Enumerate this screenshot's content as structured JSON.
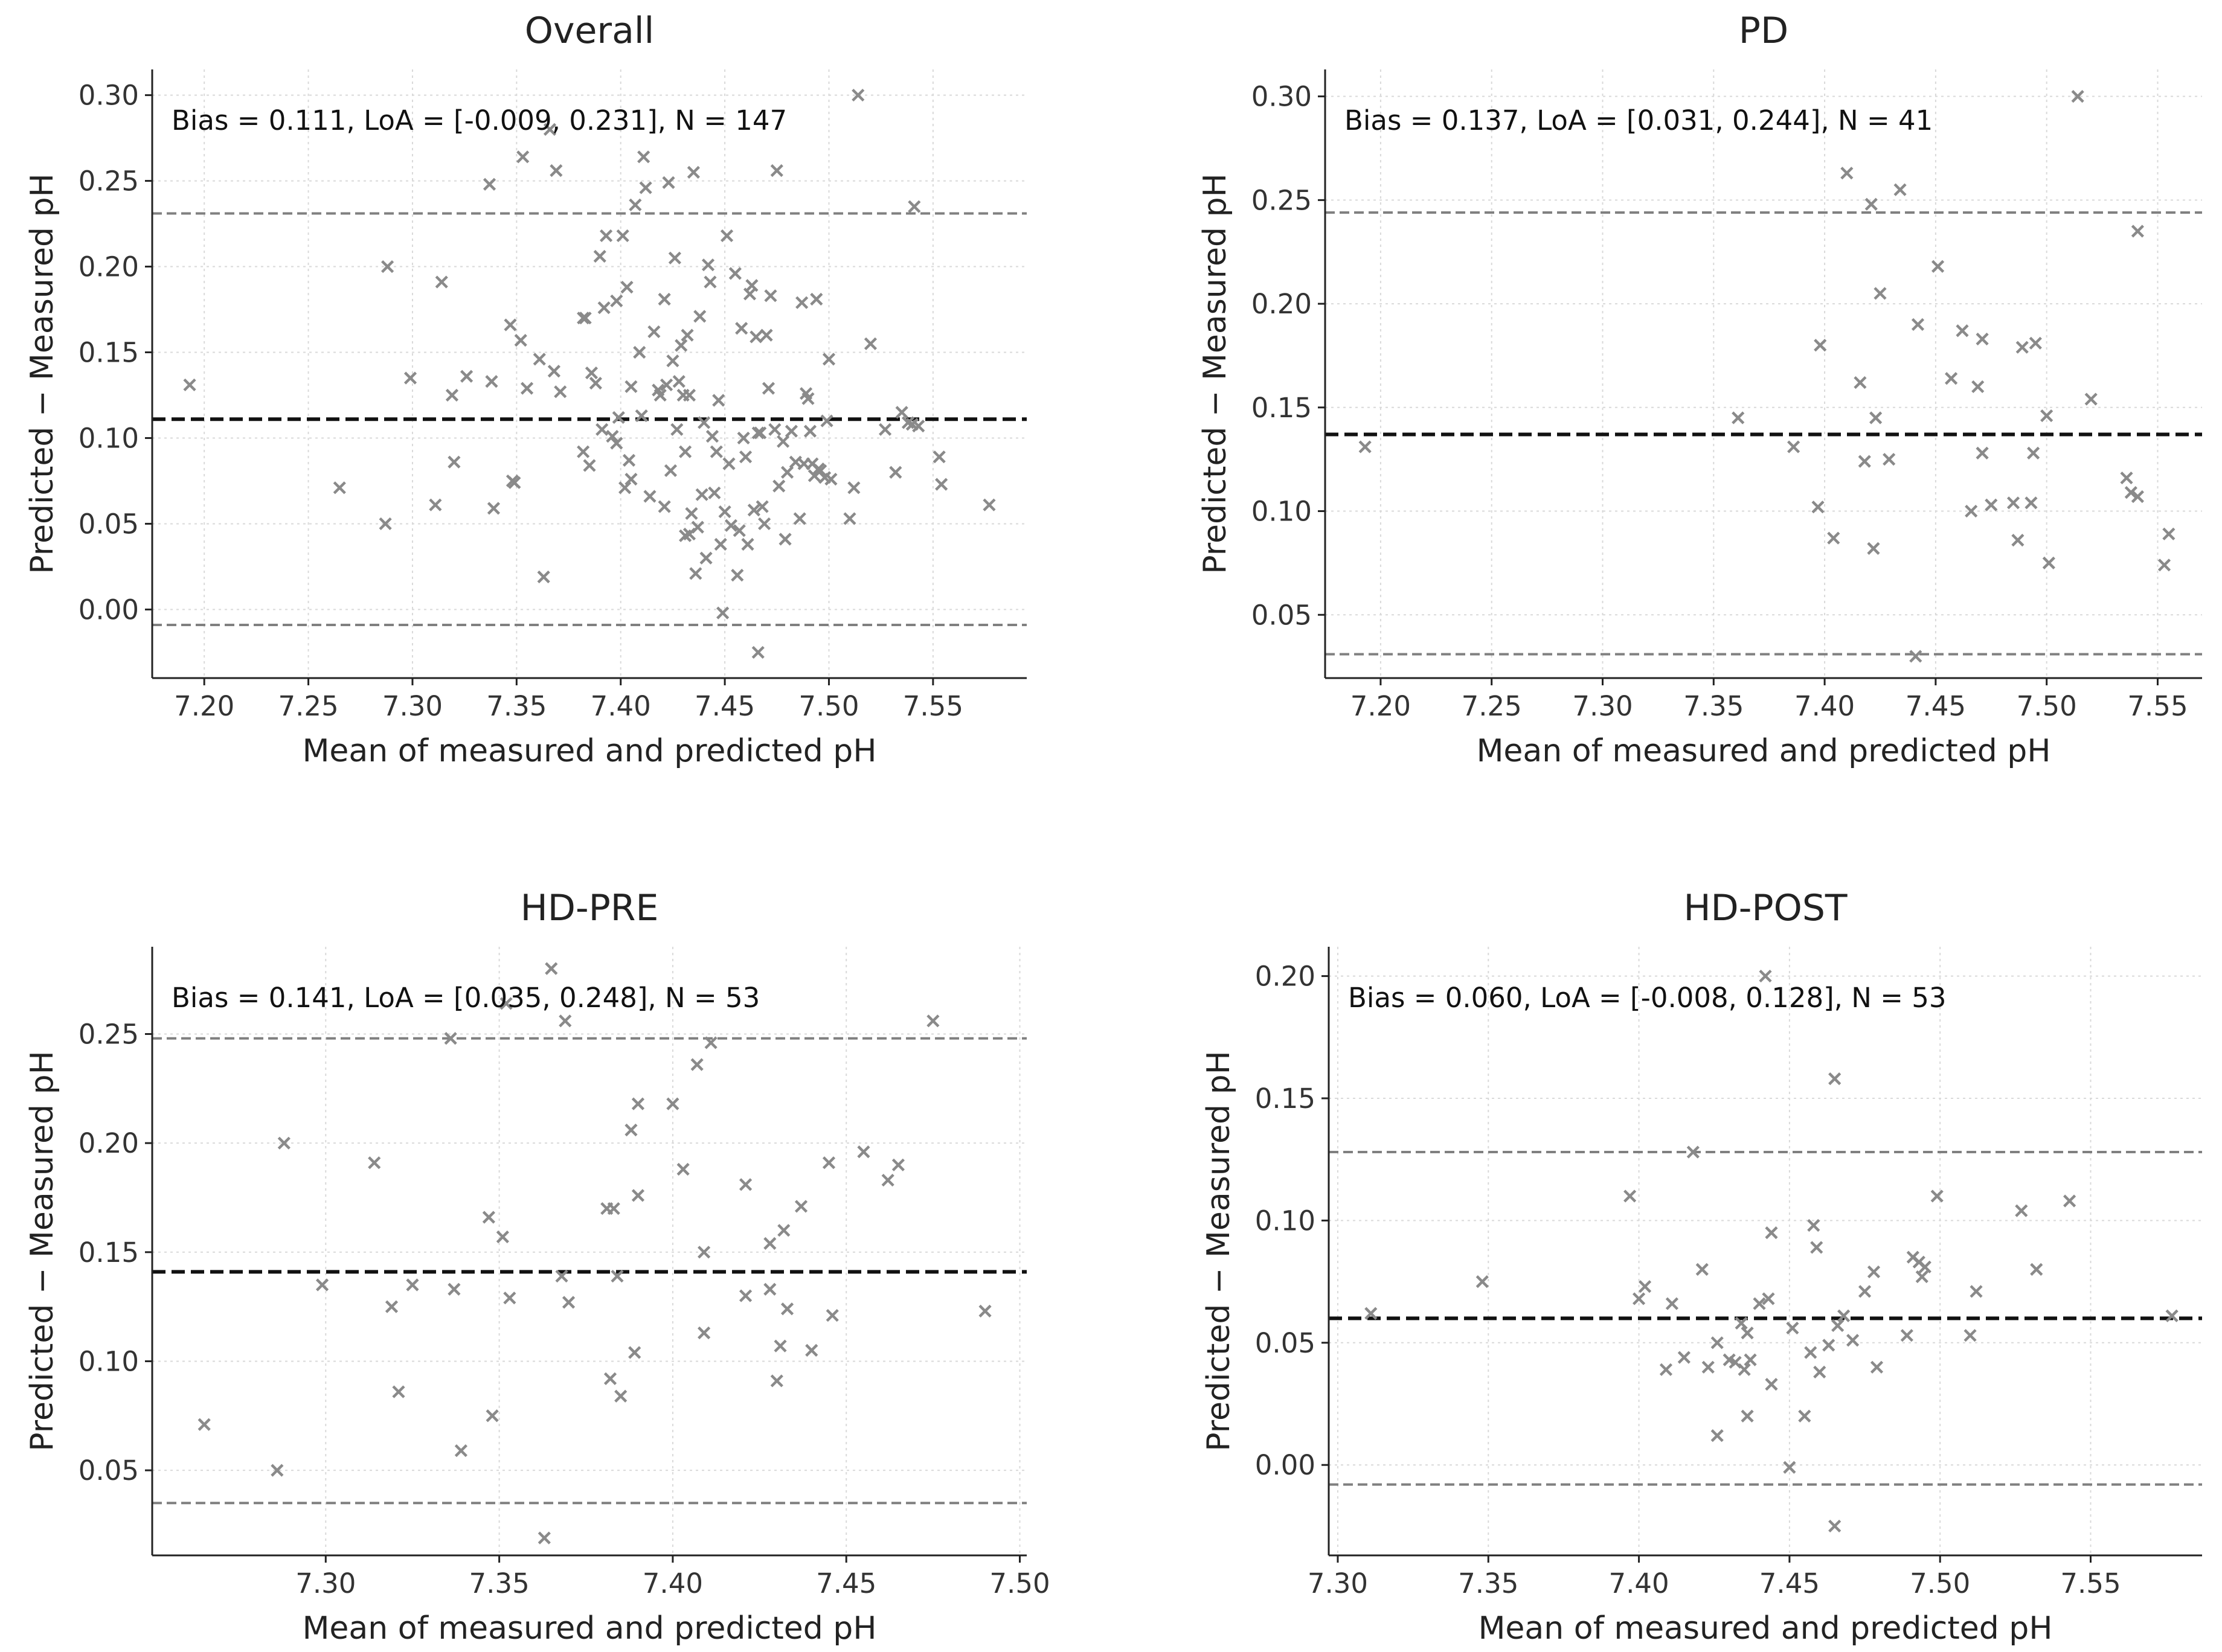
{
  "chart_data": [
    {
      "type": "scatter",
      "title": "Overall",
      "xlabel": "Mean of measured and predicted pH",
      "ylabel": "Predicted − Measured pH",
      "xlim": [
        7.175,
        7.595
      ],
      "ylim": [
        -0.04,
        0.315
      ],
      "xticks": [
        "7.20",
        "7.25",
        "7.30",
        "7.35",
        "7.40",
        "7.45",
        "7.50",
        "7.55"
      ],
      "yticks": [
        "0.00",
        "0.05",
        "0.10",
        "0.15",
        "0.20",
        "0.25",
        "0.30"
      ],
      "bias": 0.111,
      "loa_low": -0.009,
      "loa_high": 0.231,
      "annotation": "Bias = 0.111,   LoA = [-0.009,  0.231],   N = 147",
      "grid": true,
      "marker": "x",
      "points": [
        [
          7.193,
          0.131
        ],
        [
          7.265,
          0.071
        ],
        [
          7.287,
          0.05
        ],
        [
          7.288,
          0.2
        ],
        [
          7.299,
          0.135
        ],
        [
          7.311,
          0.061
        ],
        [
          7.314,
          0.191
        ],
        [
          7.319,
          0.125
        ],
        [
          7.32,
          0.086
        ],
        [
          7.326,
          0.136
        ],
        [
          7.337,
          0.248
        ],
        [
          7.338,
          0.133
        ],
        [
          7.339,
          0.059
        ],
        [
          7.347,
          0.166
        ],
        [
          7.348,
          0.075
        ],
        [
          7.349,
          0.074
        ],
        [
          7.352,
          0.157
        ],
        [
          7.353,
          0.264
        ],
        [
          7.355,
          0.129
        ],
        [
          7.361,
          0.146
        ],
        [
          7.363,
          0.019
        ],
        [
          7.366,
          0.28
        ],
        [
          7.368,
          0.139
        ],
        [
          7.369,
          0.256
        ],
        [
          7.371,
          0.127
        ],
        [
          7.382,
          0.17
        ],
        [
          7.383,
          0.17
        ],
        [
          7.382,
          0.092
        ],
        [
          7.385,
          0.084
        ],
        [
          7.386,
          0.138
        ],
        [
          7.388,
          0.132
        ],
        [
          7.39,
          0.206
        ],
        [
          7.391,
          0.105
        ],
        [
          7.392,
          0.176
        ],
        [
          7.393,
          0.218
        ],
        [
          7.396,
          0.101
        ],
        [
          7.398,
          0.18
        ],
        [
          7.399,
          0.112
        ],
        [
          7.401,
          0.218
        ],
        [
          7.402,
          0.071
        ],
        [
          7.403,
          0.188
        ],
        [
          7.404,
          0.087
        ],
        [
          7.405,
          0.076
        ],
        [
          7.407,
          0.236
        ],
        [
          7.409,
          0.15
        ],
        [
          7.41,
          0.113
        ],
        [
          7.411,
          0.264
        ],
        [
          7.412,
          0.246
        ],
        [
          7.414,
          0.066
        ],
        [
          7.416,
          0.162
        ],
        [
          7.418,
          0.128
        ],
        [
          7.419,
          0.125
        ],
        [
          7.421,
          0.181
        ],
        [
          7.422,
          0.131
        ],
        [
          7.423,
          0.249
        ],
        [
          7.424,
          0.081
        ],
        [
          7.425,
          0.145
        ],
        [
          7.426,
          0.205
        ],
        [
          7.427,
          0.105
        ],
        [
          7.428,
          0.133
        ],
        [
          7.429,
          0.154
        ],
        [
          7.43,
          0.125
        ],
        [
          7.431,
          0.092
        ],
        [
          7.432,
          0.16
        ],
        [
          7.433,
          0.125
        ],
        [
          7.434,
          0.056
        ],
        [
          7.435,
          0.255
        ],
        [
          7.436,
          0.021
        ],
        [
          7.437,
          0.048
        ],
        [
          7.438,
          0.171
        ],
        [
          7.439,
          0.067
        ],
        [
          7.44,
          0.109
        ],
        [
          7.441,
          0.03
        ],
        [
          7.442,
          0.201
        ],
        [
          7.443,
          0.191
        ],
        [
          7.444,
          0.101
        ],
        [
          7.445,
          0.068
        ],
        [
          7.446,
          0.092
        ],
        [
          7.447,
          0.122
        ],
        [
          7.448,
          0.038
        ],
        [
          7.449,
          -0.002
        ],
        [
          7.45,
          0.057
        ],
        [
          7.451,
          0.218
        ],
        [
          7.452,
          0.085
        ],
        [
          7.453,
          0.049
        ],
        [
          7.455,
          0.196
        ],
        [
          7.456,
          0.02
        ],
        [
          7.457,
          0.046
        ],
        [
          7.458,
          0.164
        ],
        [
          7.459,
          0.1
        ],
        [
          7.46,
          0.089
        ],
        [
          7.461,
          0.038
        ],
        [
          7.462,
          0.184
        ],
        [
          7.463,
          0.189
        ],
        [
          7.464,
          0.058
        ],
        [
          7.465,
          0.159
        ],
        [
          7.466,
          -0.025
        ],
        [
          7.467,
          0.103
        ],
        [
          7.468,
          0.06
        ],
        [
          7.469,
          0.05
        ],
        [
          7.47,
          0.16
        ],
        [
          7.471,
          0.129
        ],
        [
          7.472,
          0.183
        ],
        [
          7.474,
          0.105
        ],
        [
          7.475,
          0.256
        ],
        [
          7.476,
          0.072
        ],
        [
          7.478,
          0.098
        ],
        [
          7.479,
          0.041
        ],
        [
          7.48,
          0.08
        ],
        [
          7.482,
          0.104
        ],
        [
          7.484,
          0.086
        ],
        [
          7.486,
          0.053
        ],
        [
          7.487,
          0.179
        ],
        [
          7.488,
          0.085
        ],
        [
          7.489,
          0.126
        ],
        [
          7.49,
          0.123
        ],
        [
          7.491,
          0.104
        ],
        [
          7.492,
          0.085
        ],
        [
          7.493,
          0.078
        ],
        [
          7.494,
          0.181
        ],
        [
          7.495,
          0.082
        ],
        [
          7.496,
          0.081
        ],
        [
          7.498,
          0.077
        ],
        [
          7.499,
          0.11
        ],
        [
          7.5,
          0.146
        ],
        [
          7.501,
          0.076
        ],
        [
          7.51,
          0.053
        ],
        [
          7.512,
          0.071
        ],
        [
          7.514,
          0.3
        ],
        [
          7.52,
          0.155
        ],
        [
          7.527,
          0.105
        ],
        [
          7.532,
          0.08
        ],
        [
          7.535,
          0.115
        ],
        [
          7.538,
          0.109
        ],
        [
          7.54,
          0.108
        ],
        [
          7.541,
          0.235
        ],
        [
          7.543,
          0.107
        ],
        [
          7.553,
          0.089
        ],
        [
          7.554,
          0.073
        ],
        [
          7.577,
          0.061
        ],
        [
          7.466,
          0.103
        ],
        [
          7.431,
          0.043
        ],
        [
          7.433,
          0.044
        ],
        [
          7.421,
          0.06
        ],
        [
          7.405,
          0.13
        ],
        [
          7.398,
          0.097
        ]
      ]
    },
    {
      "type": "scatter",
      "title": "PD",
      "xlabel": "Mean of measured and predicted pH",
      "ylabel": "Predicted − Measured pH",
      "xlim": [
        7.175,
        7.57
      ],
      "ylim": [
        0.0195,
        0.313
      ],
      "xticks": [
        "7.20",
        "7.25",
        "7.30",
        "7.35",
        "7.40",
        "7.45",
        "7.50",
        "7.55"
      ],
      "yticks": [
        "0.05",
        "0.10",
        "0.15",
        "0.20",
        "0.25",
        "0.30"
      ],
      "bias": 0.137,
      "loa_low": 0.031,
      "loa_high": 0.244,
      "annotation": "Bias = 0.137,   LoA = [0.031,  0.244],   N = 41",
      "grid": true,
      "marker": "x",
      "points": [
        [
          7.193,
          0.131
        ],
        [
          7.361,
          0.145
        ],
        [
          7.386,
          0.131
        ],
        [
          7.397,
          0.102
        ],
        [
          7.398,
          0.18
        ],
        [
          7.404,
          0.087
        ],
        [
          7.41,
          0.263
        ],
        [
          7.416,
          0.162
        ],
        [
          7.418,
          0.124
        ],
        [
          7.421,
          0.248
        ],
        [
          7.422,
          0.082
        ],
        [
          7.423,
          0.145
        ],
        [
          7.425,
          0.205
        ],
        [
          7.429,
          0.125
        ],
        [
          7.434,
          0.255
        ],
        [
          7.441,
          0.03
        ],
        [
          7.442,
          0.19
        ],
        [
          7.451,
          0.218
        ],
        [
          7.457,
          0.164
        ],
        [
          7.462,
          0.187
        ],
        [
          7.466,
          0.1
        ],
        [
          7.469,
          0.16
        ],
        [
          7.471,
          0.183
        ],
        [
          7.471,
          0.128
        ],
        [
          7.475,
          0.103
        ],
        [
          7.485,
          0.104
        ],
        [
          7.487,
          0.086
        ],
        [
          7.489,
          0.179
        ],
        [
          7.493,
          0.104
        ],
        [
          7.494,
          0.128
        ],
        [
          7.495,
          0.181
        ],
        [
          7.501,
          0.075
        ],
        [
          7.5,
          0.146
        ],
        [
          7.514,
          0.3
        ],
        [
          7.52,
          0.154
        ],
        [
          7.536,
          0.116
        ],
        [
          7.538,
          0.109
        ],
        [
          7.541,
          0.107
        ],
        [
          7.541,
          0.235
        ],
        [
          7.553,
          0.074
        ],
        [
          7.555,
          0.089
        ]
      ]
    },
    {
      "type": "scatter",
      "title": "HD-PRE",
      "xlabel": "Mean of measured and predicted pH",
      "ylabel": "Predicted − Measured pH",
      "xlim": [
        7.25,
        7.502
      ],
      "ylim": [
        0.011,
        0.29
      ],
      "xticks": [
        "7.30",
        "7.35",
        "7.40",
        "7.45",
        "7.50"
      ],
      "yticks": [
        "0.05",
        "0.10",
        "0.15",
        "0.20",
        "0.25"
      ],
      "bias": 0.141,
      "loa_low": 0.035,
      "loa_high": 0.248,
      "annotation": "Bias = 0.141,   LoA = [0.035,  0.248],   N = 53",
      "grid": true,
      "marker": "x",
      "points": [
        [
          7.265,
          0.071
        ],
        [
          7.286,
          0.05
        ],
        [
          7.288,
          0.2
        ],
        [
          7.299,
          0.135
        ],
        [
          7.314,
          0.191
        ],
        [
          7.319,
          0.125
        ],
        [
          7.321,
          0.086
        ],
        [
          7.325,
          0.135
        ],
        [
          7.336,
          0.248
        ],
        [
          7.337,
          0.133
        ],
        [
          7.339,
          0.059
        ],
        [
          7.347,
          0.166
        ],
        [
          7.348,
          0.075
        ],
        [
          7.351,
          0.157
        ],
        [
          7.352,
          0.264
        ],
        [
          7.353,
          0.129
        ],
        [
          7.363,
          0.019
        ],
        [
          7.365,
          0.28
        ],
        [
          7.368,
          0.139
        ],
        [
          7.369,
          0.256
        ],
        [
          7.37,
          0.127
        ],
        [
          7.381,
          0.17
        ],
        [
          7.382,
          0.092
        ],
        [
          7.383,
          0.17
        ],
        [
          7.384,
          0.139
        ],
        [
          7.385,
          0.084
        ],
        [
          7.388,
          0.206
        ],
        [
          7.389,
          0.104
        ],
        [
          7.39,
          0.218
        ],
        [
          7.39,
          0.176
        ],
        [
          7.4,
          0.218
        ],
        [
          7.403,
          0.188
        ],
        [
          7.407,
          0.236
        ],
        [
          7.409,
          0.113
        ],
        [
          7.409,
          0.15
        ],
        [
          7.411,
          0.246
        ],
        [
          7.421,
          0.181
        ],
        [
          7.421,
          0.13
        ],
        [
          7.428,
          0.154
        ],
        [
          7.428,
          0.133
        ],
        [
          7.43,
          0.091
        ],
        [
          7.431,
          0.107
        ],
        [
          7.432,
          0.16
        ],
        [
          7.433,
          0.124
        ],
        [
          7.437,
          0.171
        ],
        [
          7.44,
          0.105
        ],
        [
          7.445,
          0.191
        ],
        [
          7.446,
          0.121
        ],
        [
          7.455,
          0.196
        ],
        [
          7.462,
          0.183
        ],
        [
          7.465,
          0.19
        ],
        [
          7.475,
          0.256
        ],
        [
          7.49,
          0.123
        ]
      ]
    },
    {
      "type": "scatter",
      "title": "HD-POST",
      "xlabel": "Mean of measured and predicted pH",
      "ylabel": "Predicted − Measured pH",
      "xlim": [
        7.297,
        7.587
      ],
      "ylim": [
        -0.037,
        0.212
      ],
      "xticks": [
        "7.30",
        "7.35",
        "7.40",
        "7.45",
        "7.50",
        "7.55"
      ],
      "yticks": [
        "0.00",
        "0.05",
        "0.10",
        "0.15",
        "0.20"
      ],
      "bias": 0.06,
      "loa_low": -0.008,
      "loa_high": 0.128,
      "annotation": "Bias = 0.060,   LoA = [-0.008,  0.128],   N = 53",
      "grid": true,
      "marker": "x",
      "points": [
        [
          7.311,
          0.062
        ],
        [
          7.348,
          0.075
        ],
        [
          7.397,
          0.11
        ],
        [
          7.4,
          0.068
        ],
        [
          7.402,
          0.073
        ],
        [
          7.409,
          0.039
        ],
        [
          7.411,
          0.066
        ],
        [
          7.415,
          0.044
        ],
        [
          7.418,
          0.128
        ],
        [
          7.421,
          0.08
        ],
        [
          7.423,
          0.04
        ],
        [
          7.426,
          0.05
        ],
        [
          7.426,
          0.012
        ],
        [
          7.43,
          0.043
        ],
        [
          7.432,
          0.042
        ],
        [
          7.434,
          0.058
        ],
        [
          7.435,
          0.039
        ],
        [
          7.436,
          0.054
        ],
        [
          7.436,
          0.02
        ],
        [
          7.437,
          0.043
        ],
        [
          7.44,
          0.066
        ],
        [
          7.442,
          0.2
        ],
        [
          7.443,
          0.068
        ],
        [
          7.444,
          0.095
        ],
        [
          7.444,
          0.033
        ],
        [
          7.45,
          -0.001
        ],
        [
          7.451,
          0.056
        ],
        [
          7.455,
          0.02
        ],
        [
          7.457,
          0.046
        ],
        [
          7.458,
          0.098
        ],
        [
          7.459,
          0.089
        ],
        [
          7.46,
          0.038
        ],
        [
          7.463,
          0.049
        ],
        [
          7.465,
          0.158
        ],
        [
          7.465,
          -0.025
        ],
        [
          7.466,
          0.057
        ],
        [
          7.468,
          0.061
        ],
        [
          7.471,
          0.051
        ],
        [
          7.475,
          0.071
        ],
        [
          7.478,
          0.079
        ],
        [
          7.479,
          0.04
        ],
        [
          7.489,
          0.053
        ],
        [
          7.491,
          0.085
        ],
        [
          7.493,
          0.083
        ],
        [
          7.494,
          0.077
        ],
        [
          7.495,
          0.081
        ],
        [
          7.499,
          0.11
        ],
        [
          7.51,
          0.053
        ],
        [
          7.512,
          0.071
        ],
        [
          7.527,
          0.104
        ],
        [
          7.532,
          0.08
        ],
        [
          7.543,
          0.108
        ],
        [
          7.577,
          0.061
        ]
      ]
    }
  ]
}
